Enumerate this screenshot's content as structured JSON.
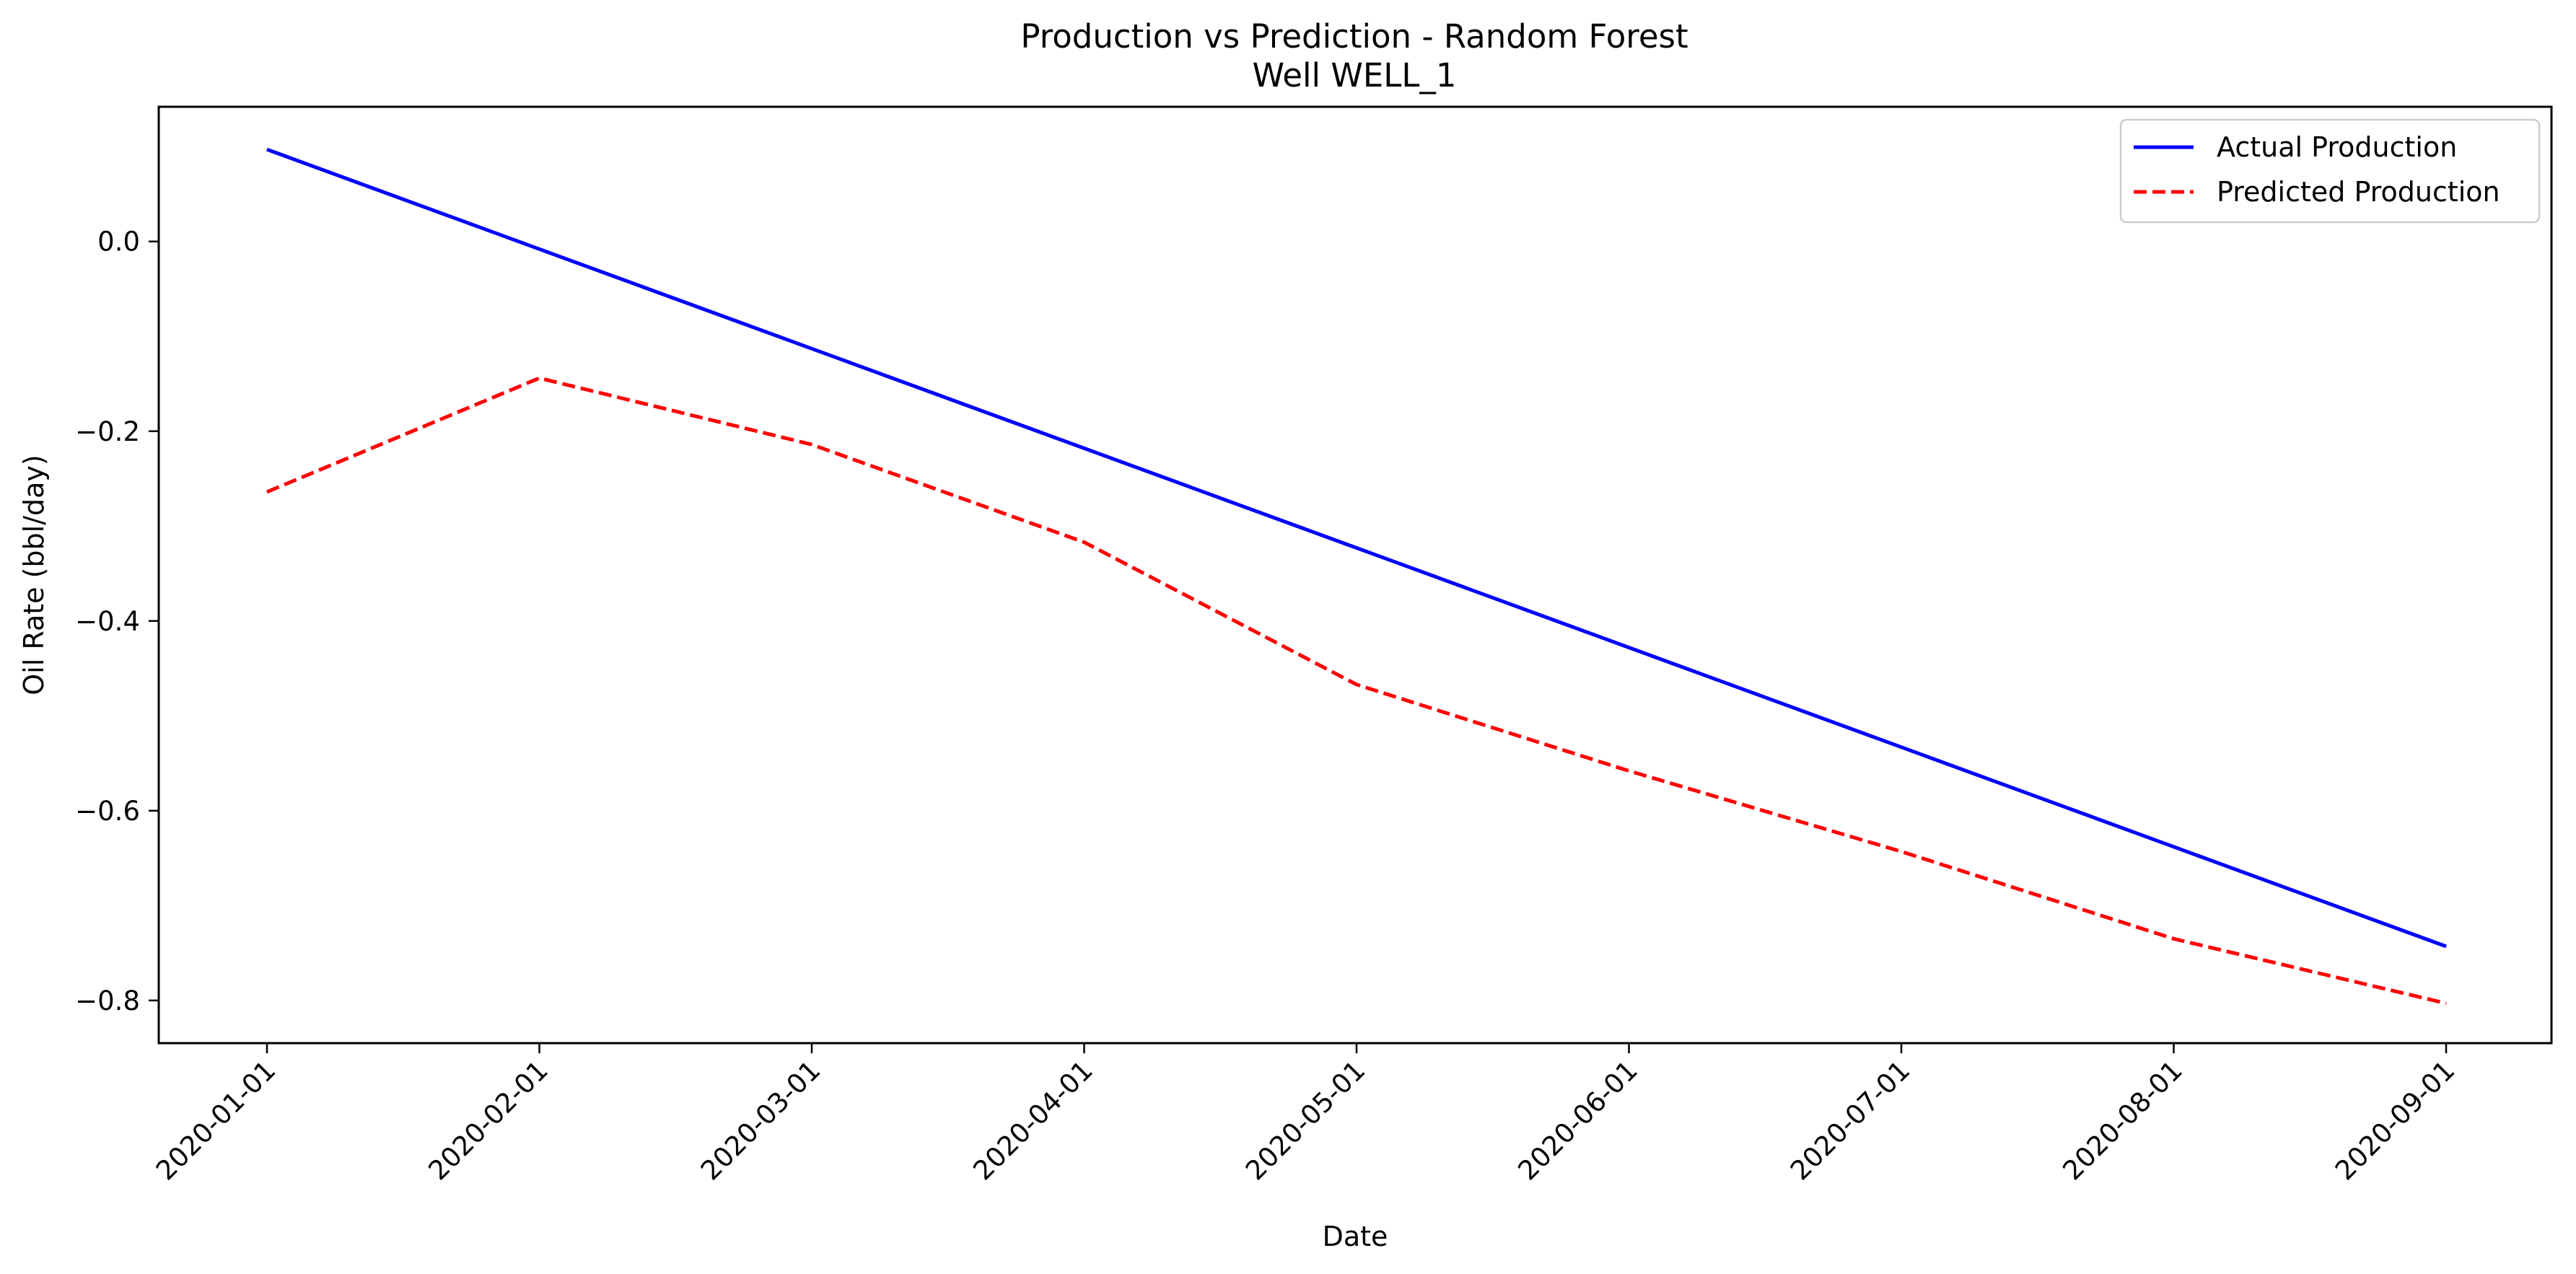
{
  "chart_data": {
    "type": "line",
    "title": "Production vs Prediction - Random Forest",
    "subtitle": "Well WELL_1",
    "xlabel": "Date",
    "ylabel": "Oil Rate (bbl/day)",
    "x": [
      "2020-01-01",
      "2020-02-01",
      "2020-03-01",
      "2020-04-01",
      "2020-05-01",
      "2020-06-01",
      "2020-07-01",
      "2020-08-01",
      "2020-09-01"
    ],
    "xticks": [
      "2020-01-01",
      "2020-02-01",
      "2020-03-01",
      "2020-04-01",
      "2020-05-01",
      "2020-06-01",
      "2020-07-01",
      "2020-08-01",
      "2020-09-01"
    ],
    "yticks": [
      0.0,
      -0.2,
      -0.4,
      -0.6,
      -0.8
    ],
    "ytick_labels": [
      "0.0",
      "−0.2",
      "−0.4",
      "−0.6",
      "−0.8"
    ],
    "ylim": [
      -0.845,
      0.142
    ],
    "grid": false,
    "legend_position": "top-right",
    "series": [
      {
        "name": "Actual Production",
        "color": "#0000ff",
        "style": "solid",
        "values": [
          0.097,
          -0.008,
          -0.113,
          -0.218,
          -0.323,
          -0.428,
          -0.533,
          -0.638,
          -0.743
        ]
      },
      {
        "name": "Predicted Production",
        "color": "#ff0000",
        "style": "dashed",
        "values": [
          -0.264,
          -0.144,
          -0.214,
          -0.317,
          -0.467,
          -0.558,
          -0.643,
          -0.735,
          -0.803
        ]
      }
    ]
  }
}
